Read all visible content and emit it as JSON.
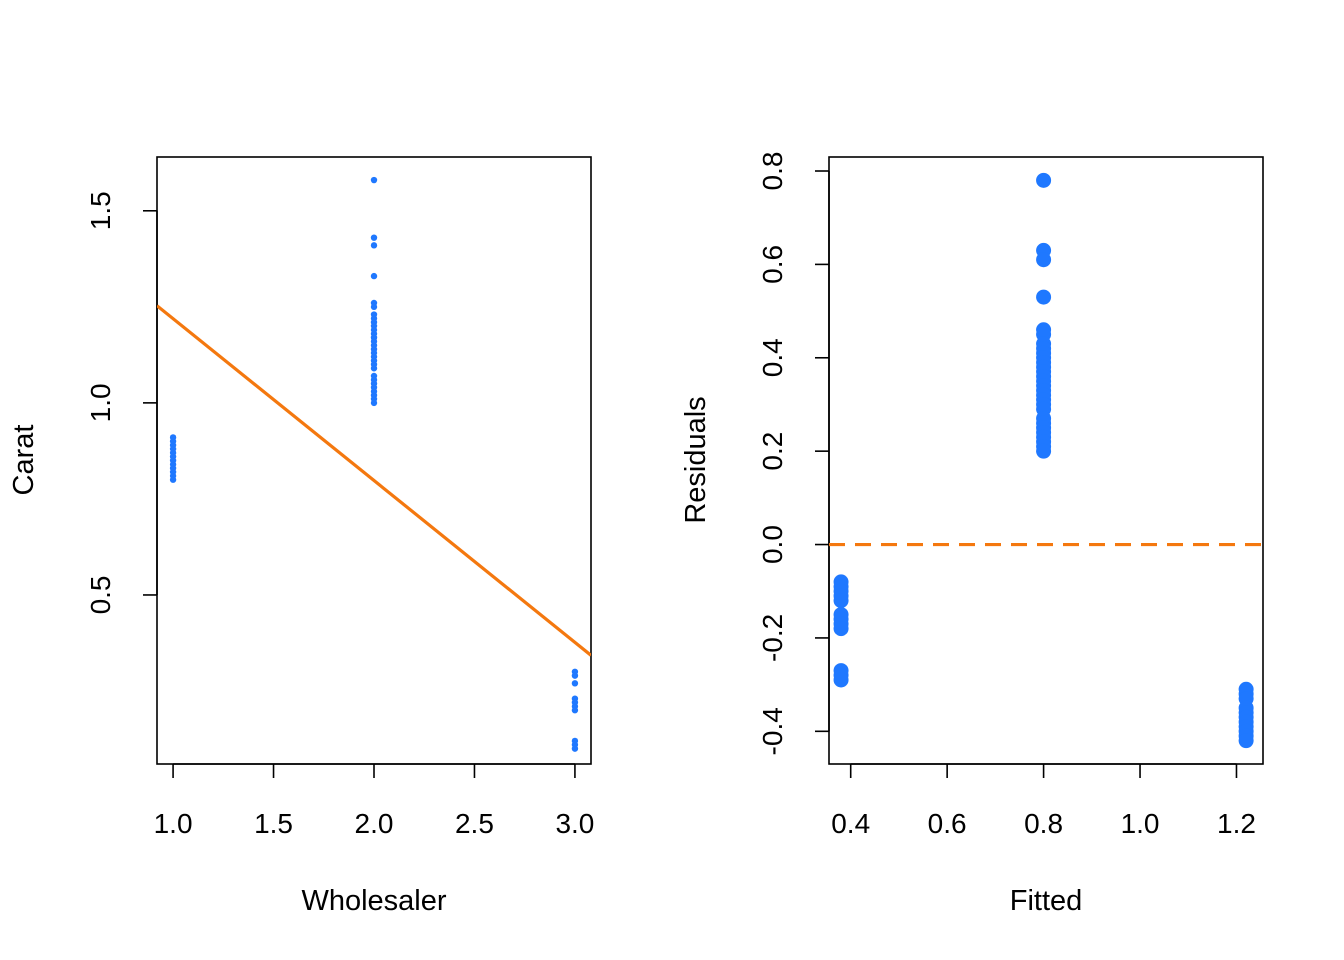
{
  "chart_data": [
    {
      "type": "scatter",
      "xlabel": "Wholesaler",
      "ylabel": "Carat",
      "xlim": [
        0.92,
        3.08
      ],
      "ylim": [
        0.06,
        1.64
      ],
      "x_ticks": [
        "1.0",
        "1.5",
        "2.0",
        "2.5",
        "3.0"
      ],
      "y_ticks": [
        "0.5",
        "1.0",
        "1.5"
      ],
      "grid": false,
      "legend": "none",
      "point_color": "#1f78ff",
      "line_color": "#f4780f",
      "points": [
        [
          1,
          0.91
        ],
        [
          1,
          0.9
        ],
        [
          1,
          0.89
        ],
        [
          1,
          0.88
        ],
        [
          1,
          0.87
        ],
        [
          1,
          0.86
        ],
        [
          1,
          0.85
        ],
        [
          1,
          0.84
        ],
        [
          1,
          0.83
        ],
        [
          1,
          0.82
        ],
        [
          1,
          0.81
        ],
        [
          1,
          0.8
        ],
        [
          2,
          1.58
        ],
        [
          2,
          1.43
        ],
        [
          2,
          1.41
        ],
        [
          2,
          1.33
        ],
        [
          2,
          1.26
        ],
        [
          2,
          1.25
        ],
        [
          2,
          1.23
        ],
        [
          2,
          1.22
        ],
        [
          2,
          1.21
        ],
        [
          2,
          1.2
        ],
        [
          2,
          1.19
        ],
        [
          2,
          1.18
        ],
        [
          2,
          1.17
        ],
        [
          2,
          1.16
        ],
        [
          2,
          1.15
        ],
        [
          2,
          1.14
        ],
        [
          2,
          1.13
        ],
        [
          2,
          1.12
        ],
        [
          2,
          1.11
        ],
        [
          2,
          1.1
        ],
        [
          2,
          1.09
        ],
        [
          2,
          1.07
        ],
        [
          2,
          1.06
        ],
        [
          2,
          1.05
        ],
        [
          2,
          1.04
        ],
        [
          2,
          1.03
        ],
        [
          2,
          1.02
        ],
        [
          2,
          1.01
        ],
        [
          2,
          1.0
        ],
        [
          3,
          0.3
        ],
        [
          3,
          0.29
        ],
        [
          3,
          0.27
        ],
        [
          3,
          0.23
        ],
        [
          3,
          0.22
        ],
        [
          3,
          0.21
        ],
        [
          3,
          0.2
        ],
        [
          3,
          0.12
        ],
        [
          3,
          0.11
        ],
        [
          3,
          0.1
        ]
      ],
      "regression_line": {
        "intercept": 1.6405,
        "slope": -0.4213
      }
    },
    {
      "type": "scatter",
      "xlabel": "Fitted",
      "ylabel": "Residuals",
      "xlim": [
        0.355,
        1.255
      ],
      "ylim": [
        -0.47,
        0.83
      ],
      "x_ticks": [
        "0.4",
        "0.6",
        "0.8",
        "1.0",
        "1.2"
      ],
      "y_ticks": [
        "-0.4",
        "-0.2",
        "0.0",
        "0.2",
        "0.4",
        "0.6",
        "0.8"
      ],
      "grid": false,
      "legend": "none",
      "point_color": "#1f78ff",
      "line_color": "#f4780f",
      "reference_line": 0,
      "points": [
        [
          0.8,
          0.78
        ],
        [
          0.8,
          0.63
        ],
        [
          0.8,
          0.61
        ],
        [
          0.8,
          0.53
        ],
        [
          0.8,
          0.46
        ],
        [
          0.8,
          0.45
        ],
        [
          0.8,
          0.43
        ],
        [
          0.8,
          0.42
        ],
        [
          0.8,
          0.41
        ],
        [
          0.8,
          0.4
        ],
        [
          0.8,
          0.39
        ],
        [
          0.8,
          0.38
        ],
        [
          0.8,
          0.37
        ],
        [
          0.8,
          0.36
        ],
        [
          0.8,
          0.35
        ],
        [
          0.8,
          0.34
        ],
        [
          0.8,
          0.33
        ],
        [
          0.8,
          0.32
        ],
        [
          0.8,
          0.31
        ],
        [
          0.8,
          0.3
        ],
        [
          0.8,
          0.29
        ],
        [
          0.8,
          0.27
        ],
        [
          0.8,
          0.26
        ],
        [
          0.8,
          0.25
        ],
        [
          0.8,
          0.24
        ],
        [
          0.8,
          0.23
        ],
        [
          0.8,
          0.22
        ],
        [
          0.8,
          0.21
        ],
        [
          0.8,
          0.2
        ],
        [
          0.38,
          -0.08
        ],
        [
          0.38,
          -0.09
        ],
        [
          0.38,
          -0.1
        ],
        [
          0.38,
          -0.11
        ],
        [
          0.38,
          -0.12
        ],
        [
          0.38,
          -0.15
        ],
        [
          0.38,
          -0.16
        ],
        [
          0.38,
          -0.17
        ],
        [
          0.38,
          -0.18
        ],
        [
          0.38,
          -0.27
        ],
        [
          0.38,
          -0.28
        ],
        [
          0.38,
          -0.29
        ],
        [
          1.22,
          -0.31
        ],
        [
          1.22,
          -0.32
        ],
        [
          1.22,
          -0.33
        ],
        [
          1.22,
          -0.35
        ],
        [
          1.22,
          -0.36
        ],
        [
          1.22,
          -0.37
        ],
        [
          1.22,
          -0.38
        ],
        [
          1.22,
          -0.39
        ],
        [
          1.22,
          -0.4
        ],
        [
          1.22,
          -0.41
        ],
        [
          1.22,
          -0.42
        ]
      ]
    }
  ]
}
